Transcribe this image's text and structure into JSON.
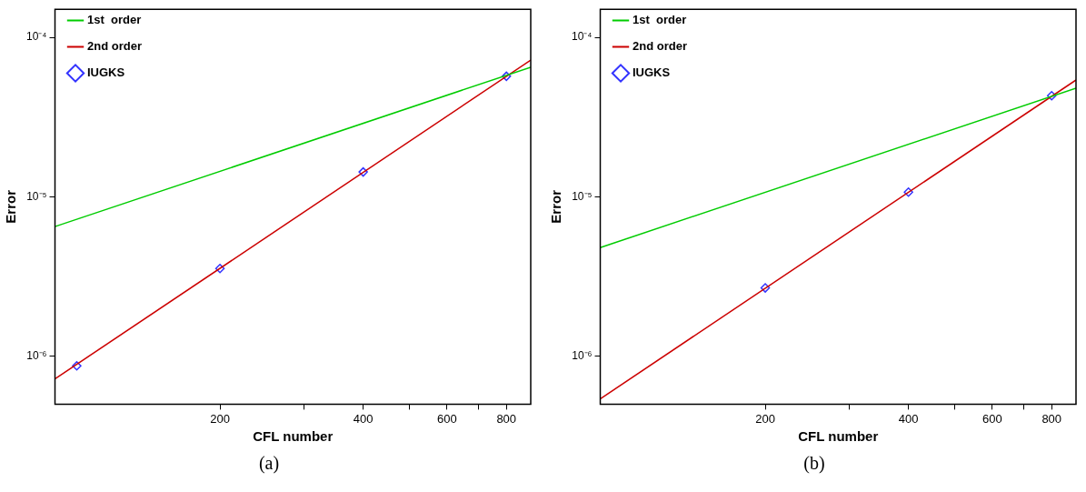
{
  "chart_data": [
    {
      "type": "line",
      "xlabel": "CFL number",
      "ylabel": "Error",
      "log": "xy",
      "legend": "top left",
      "xlim": [
        90,
        900
      ],
      "ylim": [
        5e-07,
        0.00015
      ],
      "xticks": [
        {
          "value": 200,
          "label": "200"
        },
        {
          "value": 300,
          "label": null
        },
        {
          "value": 400,
          "label": "400"
        },
        {
          "value": 500,
          "label": null
        },
        {
          "value": 600,
          "label": "600"
        },
        {
          "value": 700,
          "label": null
        },
        {
          "value": 800,
          "label": "800"
        }
      ],
      "yticks": [
        {
          "value": 1e-06,
          "label": "10⁻⁶"
        },
        {
          "value": 1e-05,
          "label": "10⁻⁵"
        },
        {
          "value": 0.0001,
          "label": "10⁻⁴"
        }
      ],
      "series": [
        {
          "name": "1st  order",
          "type": "line",
          "color": "#00cc00",
          "x": [
            90,
            900
          ],
          "values": [
            6.5e-06,
            6.5e-05
          ],
          "marker": "none"
        },
        {
          "name": "2nd order",
          "type": "line",
          "color": "#cc0000",
          "x": [
            90,
            900
          ],
          "values": [
            7.2e-07,
            7.2e-05
          ],
          "marker": "none"
        },
        {
          "name": "IUGKS",
          "type": "scatter",
          "color": "#3333ff",
          "x": [
            100,
            200,
            400,
            800
          ],
          "values": [
            8.7e-07,
            3.55e-06,
            1.43e-05,
            5.7e-05
          ],
          "marker": "diamond"
        }
      ],
      "annotations": [
        "(a)"
      ]
    },
    {
      "type": "line",
      "xlabel": "CFL number",
      "ylabel": "Error",
      "log": "xy",
      "legend": "top left",
      "xlim": [
        90,
        900
      ],
      "ylim": [
        5e-07,
        0.00015
      ],
      "xticks": [
        {
          "value": 200,
          "label": "200"
        },
        {
          "value": 300,
          "label": null
        },
        {
          "value": 400,
          "label": "400"
        },
        {
          "value": 500,
          "label": null
        },
        {
          "value": 600,
          "label": "600"
        },
        {
          "value": 700,
          "label": null
        },
        {
          "value": 800,
          "label": "800"
        }
      ],
      "yticks": [
        {
          "value": 1e-06,
          "label": "10⁻⁶"
        },
        {
          "value": 1e-05,
          "label": "10⁻⁵"
        },
        {
          "value": 0.0001,
          "label": "10⁻⁴"
        }
      ],
      "series": [
        {
          "name": "1st  order",
          "type": "line",
          "color": "#00cc00",
          "x": [
            90,
            900
          ],
          "values": [
            4.8e-06,
            4.8e-05
          ],
          "marker": "none"
        },
        {
          "name": "2nd order",
          "type": "line",
          "color": "#cc0000",
          "x": [
            90,
            900
          ],
          "values": [
            5.4e-07,
            5.4e-05
          ],
          "marker": "none"
        },
        {
          "name": "IUGKS",
          "type": "scatter",
          "color": "#3333ff",
          "x": [
            200,
            400,
            800
          ],
          "values": [
            2.68e-06,
            1.07e-05,
            4.3e-05
          ],
          "marker": "diamond"
        }
      ],
      "annotations": [
        "(b)"
      ]
    }
  ]
}
